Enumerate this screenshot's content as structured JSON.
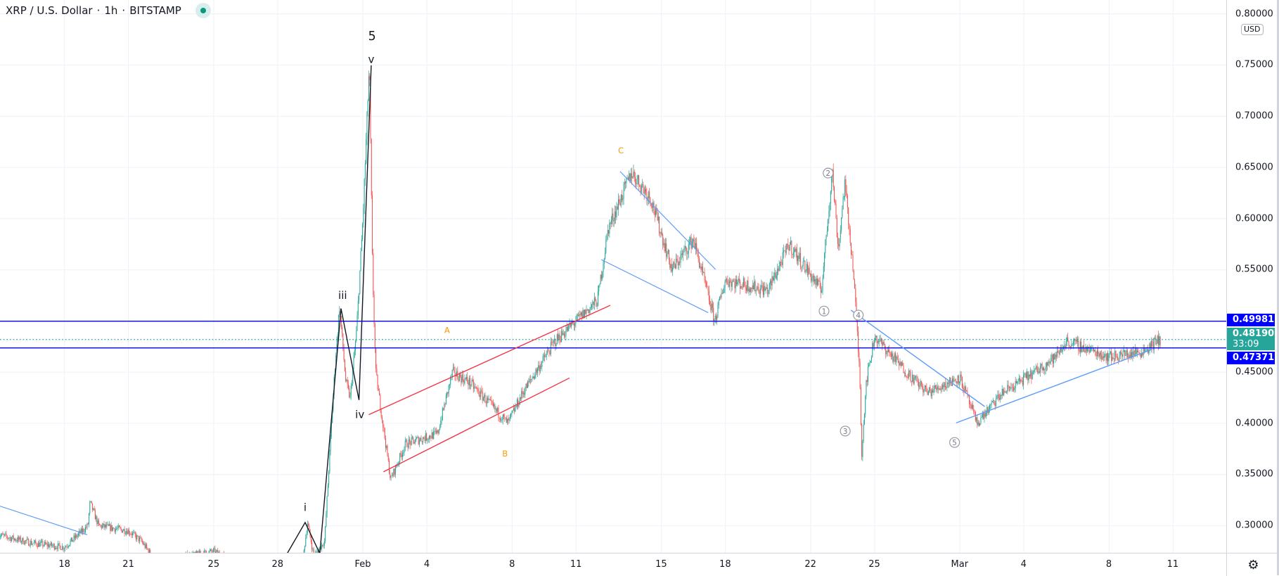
{
  "header": {
    "symbol": "XRP / U.S. Dollar",
    "sep1": "·",
    "interval": "1h",
    "sep2": "·",
    "exchange": "BITSTAMP",
    "status_color": "#089981"
  },
  "price_axis": {
    "currency": "USD",
    "labels": [
      "0.80000",
      "0.75000",
      "0.70000",
      "0.65000",
      "0.60000",
      "0.55000",
      "0.45000",
      "0.40000",
      "0.35000",
      "0.30000"
    ]
  },
  "time_axis": {
    "labels": [
      {
        "text": "18",
        "day": 0
      },
      {
        "text": "21",
        "day": 3
      },
      {
        "text": "25",
        "day": 7
      },
      {
        "text": "28",
        "day": 10
      },
      {
        "text": "Feb",
        "day": 14
      },
      {
        "text": "4",
        "day": 17
      },
      {
        "text": "8",
        "day": 21
      },
      {
        "text": "11",
        "day": 24
      },
      {
        "text": "15",
        "day": 28
      },
      {
        "text": "18",
        "day": 31
      },
      {
        "text": "22",
        "day": 35
      },
      {
        "text": "25",
        "day": 38
      },
      {
        "text": "Mar",
        "day": 42
      },
      {
        "text": "4",
        "day": 45
      },
      {
        "text": "8",
        "day": 49
      },
      {
        "text": "11",
        "day": 52
      }
    ]
  },
  "tags": {
    "upper_level": {
      "value": "0.49981",
      "price": 0.49981,
      "color": "#0000ff"
    },
    "current": {
      "value": "0.48190",
      "countdown": "33:09",
      "price": 0.4819,
      "color": "#26a69a"
    },
    "lower_level": {
      "value": "0.47371",
      "price": 0.47371,
      "color": "#0000ff"
    }
  },
  "annotations": {
    "wave5": "5",
    "i": "i",
    "iii": "iii",
    "iv": "iv",
    "v": "v",
    "A": "A",
    "B": "B",
    "C": "C",
    "c1": "1",
    "c2": "2",
    "c3": "3",
    "c4": "4",
    "c5": "5"
  },
  "chart_data": {
    "type": "candlestick",
    "title": "XRP / U.S. Dollar · 1h · BITSTAMP",
    "x_unit": "days since Jan 18",
    "ylim": [
      0.272,
      0.8
    ],
    "up_color": "#26a69a",
    "down_color": "#ef5350",
    "price_path": [
      [
        -3.1,
        0.291
      ],
      [
        -1.5,
        0.283
      ],
      [
        0,
        0.279
      ],
      [
        1.1,
        0.3
      ],
      [
        1.2,
        0.323
      ],
      [
        1.6,
        0.3
      ],
      [
        3,
        0.295
      ],
      [
        3.6,
        0.285
      ],
      [
        4.3,
        0.265
      ],
      [
        7,
        0.275
      ],
      [
        8,
        0.265
      ],
      [
        10,
        0.255
      ],
      [
        11.2,
        0.27
      ],
      [
        11.4,
        0.303
      ],
      [
        11.7,
        0.27
      ],
      [
        12.2,
        0.285
      ],
      [
        12.7,
        0.46
      ],
      [
        12.9,
        0.514
      ],
      [
        13.2,
        0.44
      ],
      [
        13.4,
        0.425
      ],
      [
        13.7,
        0.49
      ],
      [
        14.0,
        0.6
      ],
      [
        14.3,
        0.751
      ],
      [
        14.45,
        0.55
      ],
      [
        14.6,
        0.45
      ],
      [
        15.3,
        0.345
      ],
      [
        16,
        0.38
      ],
      [
        17.5,
        0.39
      ],
      [
        18.2,
        0.45
      ],
      [
        19,
        0.44
      ],
      [
        20.8,
        0.4
      ],
      [
        21.5,
        0.43
      ],
      [
        23,
        0.48
      ],
      [
        24,
        0.5
      ],
      [
        25,
        0.52
      ],
      [
        25.5,
        0.59
      ],
      [
        26.6,
        0.645
      ],
      [
        27.5,
        0.62
      ],
      [
        28.5,
        0.55
      ],
      [
        29.5,
        0.58
      ],
      [
        30.5,
        0.5
      ],
      [
        31,
        0.54
      ],
      [
        33,
        0.53
      ],
      [
        34,
        0.575
      ],
      [
        35.5,
        0.53
      ],
      [
        35.9,
        0.62
      ],
      [
        36,
        0.65
      ],
      [
        36.3,
        0.57
      ],
      [
        36.6,
        0.635
      ],
      [
        37,
        0.55
      ],
      [
        37.3,
        0.45
      ],
      [
        37.4,
        0.37
      ],
      [
        37.6,
        0.44
      ],
      [
        38,
        0.485
      ],
      [
        39.5,
        0.45
      ],
      [
        40.5,
        0.43
      ],
      [
        42,
        0.445
      ],
      [
        42.8,
        0.4
      ],
      [
        44,
        0.43
      ],
      [
        45.5,
        0.45
      ],
      [
        46.5,
        0.465
      ],
      [
        47,
        0.48
      ],
      [
        49,
        0.465
      ],
      [
        50.5,
        0.47
      ],
      [
        51.4,
        0.482
      ]
    ],
    "horizontal_levels": [
      0.49981,
      0.47371
    ],
    "last_price": 0.4819
  }
}
